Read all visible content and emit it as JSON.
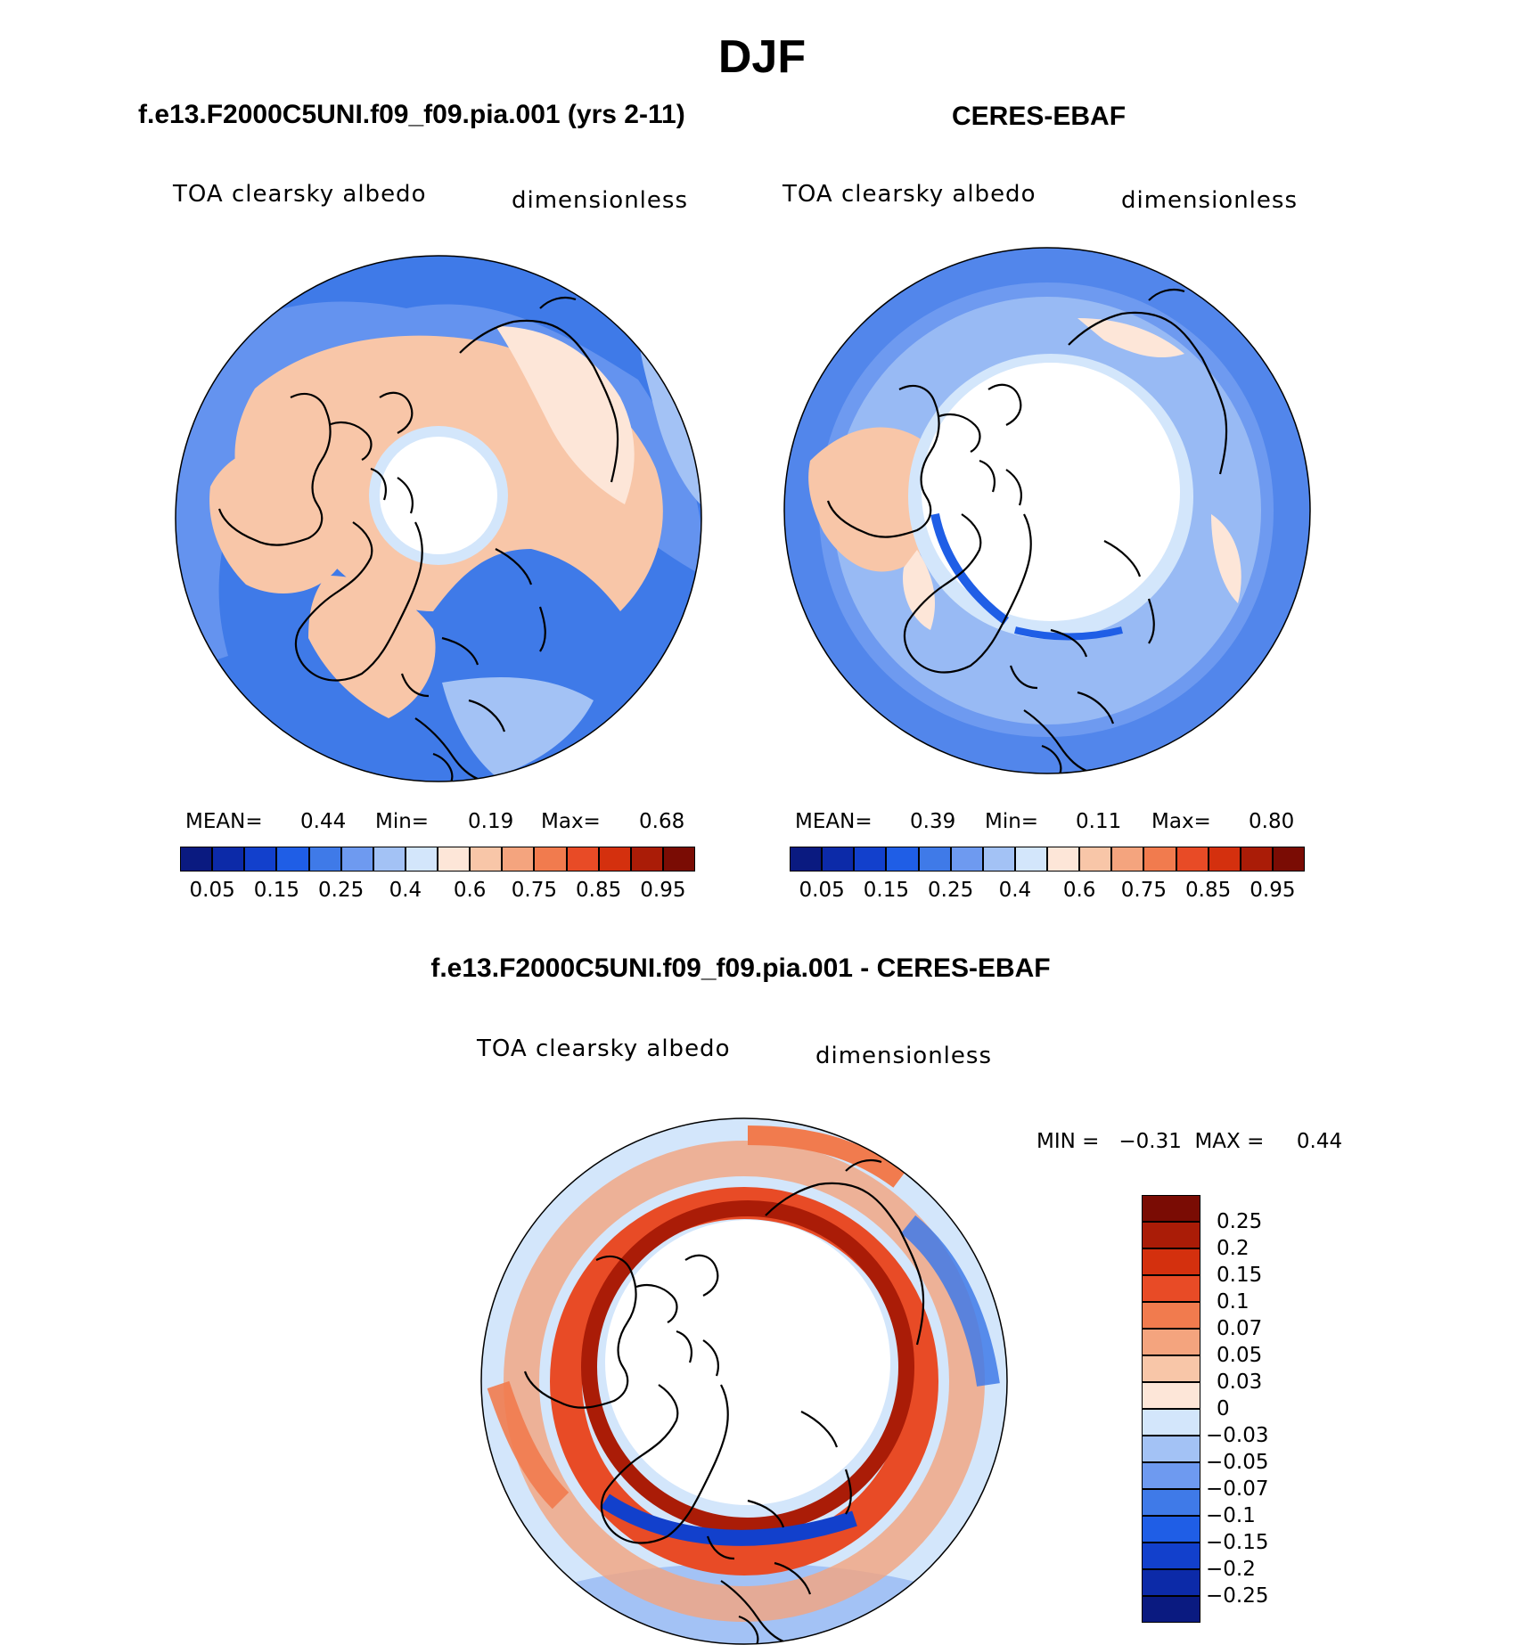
{
  "figure": {
    "title": "DJF",
    "bottom_title": "f.e13.F2000C5UNI.f09_f09.pia.001 - CERES-EBAF"
  },
  "panels": [
    {
      "title": "f.e13.F2000C5UNI.f09_f09.pia.001 (yrs 2-11)",
      "variable": "TOA clearsky albedo",
      "units": "dimensionless",
      "mean_label": "MEAN=",
      "mean": "0.44",
      "min_label": "Min=",
      "min": "0.19",
      "max_label": "Max=",
      "max": "0.68"
    },
    {
      "title": "CERES-EBAF",
      "variable": "TOA clearsky albedo",
      "units": "dimensionless",
      "mean_label": "MEAN=",
      "mean": "0.39",
      "min_label": "Min=",
      "min": "0.11",
      "max_label": "Max=",
      "max": "0.80"
    },
    {
      "variable": "TOA clearsky albedo",
      "units": "dimensionless",
      "minmax_text": "MIN =   −0.31  MAX =     0.44"
    }
  ],
  "abs_colorbar": {
    "colors": [
      "#0a1a80",
      "#0c2aa8",
      "#1240cc",
      "#1f5ee6",
      "#3f7ae8",
      "#6e9af0",
      "#a3c2f5",
      "#d3e6fb",
      "#fde6d8",
      "#f8c6a8",
      "#f4a47e",
      "#f17b4e",
      "#e84b26",
      "#d4300e",
      "#aa1c07",
      "#7a0c04"
    ],
    "tick_labels": [
      "0.05",
      "0.15",
      "0.25",
      "0.4",
      "0.6",
      "0.75",
      "0.85",
      "0.95"
    ]
  },
  "diff_colorbar": {
    "colors": [
      "#7a0c04",
      "#aa1c07",
      "#d4300e",
      "#e84b26",
      "#f17b4e",
      "#f4a47e",
      "#f8c6a8",
      "#fde6d8",
      "#d3e6fb",
      "#a3c2f5",
      "#6e9af0",
      "#3f7ae8",
      "#1f5ee6",
      "#1240cc",
      "#0c2aa8",
      "#0a1a80"
    ],
    "tick_labels": [
      "0.25",
      "0.2",
      "0.15",
      "0.1",
      "0.07",
      "0.05",
      "0.03",
      "0",
      "−0.03",
      "−0.05",
      "−0.07",
      "−0.1",
      "−0.15",
      "−0.2",
      "−0.25"
    ]
  },
  "icons": [
    "polar-map-model",
    "polar-map-ceres",
    "polar-map-difference"
  ]
}
